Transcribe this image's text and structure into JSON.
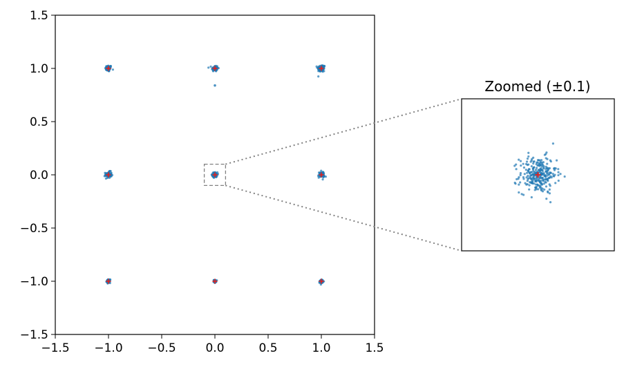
{
  "chart_data": [
    {
      "type": "scatter",
      "title": "",
      "xlabel": "",
      "ylabel": "",
      "xlim": [
        -1.5,
        1.5
      ],
      "ylim": [
        -1.5,
        1.5
      ],
      "xticks": [
        "−1.5",
        "−1.0",
        "−0.5",
        "0.0",
        "0.5",
        "1.0",
        "1.5"
      ],
      "yticks": [
        "−1.5",
        "−1.0",
        "−0.5",
        "0.0",
        "0.5",
        "1.0",
        "1.5"
      ],
      "grid": false,
      "series": [
        {
          "role": "samples",
          "color": "#1f77b4",
          "clusters": [
            {
              "x": -1,
              "y": 1,
              "spread": 0.015
            },
            {
              "x": 0,
              "y": 1,
              "spread": 0.015
            },
            {
              "x": 1,
              "y": 1,
              "spread": 0.018
            },
            {
              "x": -1,
              "y": 0,
              "spread": 0.015
            },
            {
              "x": 0,
              "y": 0,
              "spread": 0.012
            },
            {
              "x": 1,
              "y": 0,
              "spread": 0.015
            },
            {
              "x": -1,
              "y": -1,
              "spread": 0.008
            },
            {
              "x": 0,
              "y": -1,
              "spread": 0.006
            },
            {
              "x": 1,
              "y": -1,
              "spread": 0.008
            }
          ],
          "outliers": [
            {
              "x": 0.0,
              "y": 0.84
            }
          ]
        },
        {
          "role": "targets",
          "color": "#d62728",
          "marker": "+",
          "points": [
            [
              -1,
              1
            ],
            [
              0,
              1
            ],
            [
              1,
              1
            ],
            [
              -1,
              0
            ],
            [
              0,
              0
            ],
            [
              1,
              0
            ],
            [
              -1,
              -1
            ],
            [
              0,
              -1
            ],
            [
              1,
              -1
            ]
          ]
        }
      ],
      "zoom_box": {
        "xlim": [
          -0.1,
          0.1
        ],
        "ylim": [
          -0.1,
          0.1
        ],
        "style": "dashed",
        "color": "#808080"
      }
    },
    {
      "type": "scatter",
      "title": "Zoomed (±0.1)",
      "xlim": [
        -0.1,
        0.1
      ],
      "ylim": [
        -0.1,
        0.1
      ],
      "ticks": false,
      "center": {
        "x": 0,
        "y": 0
      },
      "sample_spread": 0.012,
      "sample_color": "#1f77b4",
      "target_color": "#d62728",
      "connector_style": "dotted"
    }
  ]
}
